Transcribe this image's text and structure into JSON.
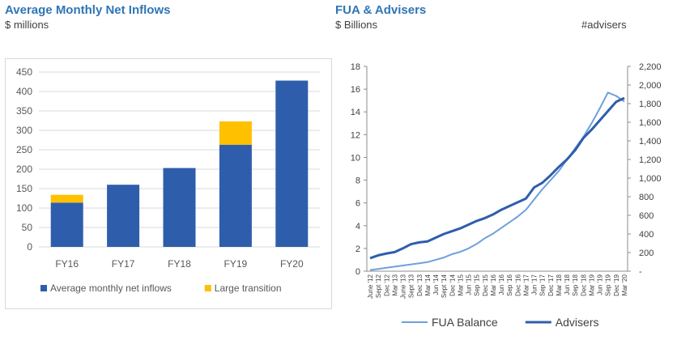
{
  "left_header": {
    "title": "Average Monthly Net Inflows",
    "subtitle": "$ millions"
  },
  "right_header": {
    "title": "FUA & Advisers",
    "subtitle": "$ Billions",
    "right_subtitle": "#advisers"
  },
  "chart_data": [
    {
      "type": "bar",
      "stacked": true,
      "categories": [
        "FY16",
        "FY17",
        "FY18",
        "FY19",
        "FY20"
      ],
      "series": [
        {
          "name": "Average monthly net inflows",
          "values": [
            114,
            160,
            203,
            263,
            428
          ],
          "color": "#2e5eab"
        },
        {
          "name": "Large transition",
          "values": [
            20,
            0,
            0,
            60,
            0
          ],
          "color": "#ffc000"
        }
      ],
      "yticks": [
        0,
        50,
        100,
        150,
        200,
        250,
        300,
        350,
        400,
        450
      ],
      "ylim": [
        0,
        450
      ],
      "grid": true,
      "legend": "bottom"
    },
    {
      "type": "line",
      "x": [
        "June '12",
        "Sept '12",
        "Dec '12",
        "Mar '13",
        "June '13",
        "Sept '13",
        "Dec '13",
        "Mar '14",
        "Jun '14",
        "Sept '14",
        "Dec '14",
        "Mar '15",
        "Jun '15",
        "Sep '15",
        "Dec '15",
        "Mar '16",
        "Jun '16",
        "Sep '16",
        "Dec '16",
        "Mar '17",
        "Jun '17",
        "Sep '17",
        "Dec '17",
        "Mar '18",
        "Jun '18",
        "Sep '18",
        "Dec '18",
        "Mar '19",
        "Jun '19",
        "Sep '19",
        "Dec '19",
        "Mar '20"
      ],
      "series": [
        {
          "name": "FUA Balance",
          "axis": "left",
          "color": "#6fa0dc",
          "values": [
            0.1,
            0.2,
            0.3,
            0.4,
            0.5,
            0.6,
            0.7,
            0.8,
            1.0,
            1.2,
            1.5,
            1.7,
            2.0,
            2.4,
            2.9,
            3.3,
            3.8,
            4.3,
            4.8,
            5.4,
            6.3,
            7.2,
            8.0,
            8.8,
            9.8,
            10.8,
            11.8,
            13.0,
            14.3,
            15.7,
            15.4,
            14.9
          ]
        },
        {
          "name": "Advisers",
          "axis": "right",
          "color": "#2e5eab",
          "values": [
            140,
            170,
            190,
            205,
            245,
            290,
            310,
            320,
            360,
            400,
            430,
            460,
            500,
            540,
            570,
            610,
            660,
            700,
            740,
            780,
            900,
            950,
            1030,
            1120,
            1200,
            1300,
            1430,
            1520,
            1620,
            1720,
            1820,
            1860
          ]
        }
      ],
      "y_left": {
        "ticks": [
          0,
          2,
          4,
          6,
          8,
          10,
          12,
          14,
          16,
          18
        ],
        "range": [
          0,
          18
        ]
      },
      "y_right": {
        "ticks": [
          "-",
          "200",
          "400",
          "600",
          "800",
          "1,000",
          "1,200",
          "1,400",
          "1,600",
          "1,800",
          "2,000",
          "2,200"
        ],
        "range": [
          0,
          2200
        ]
      },
      "legend": "bottom"
    }
  ]
}
